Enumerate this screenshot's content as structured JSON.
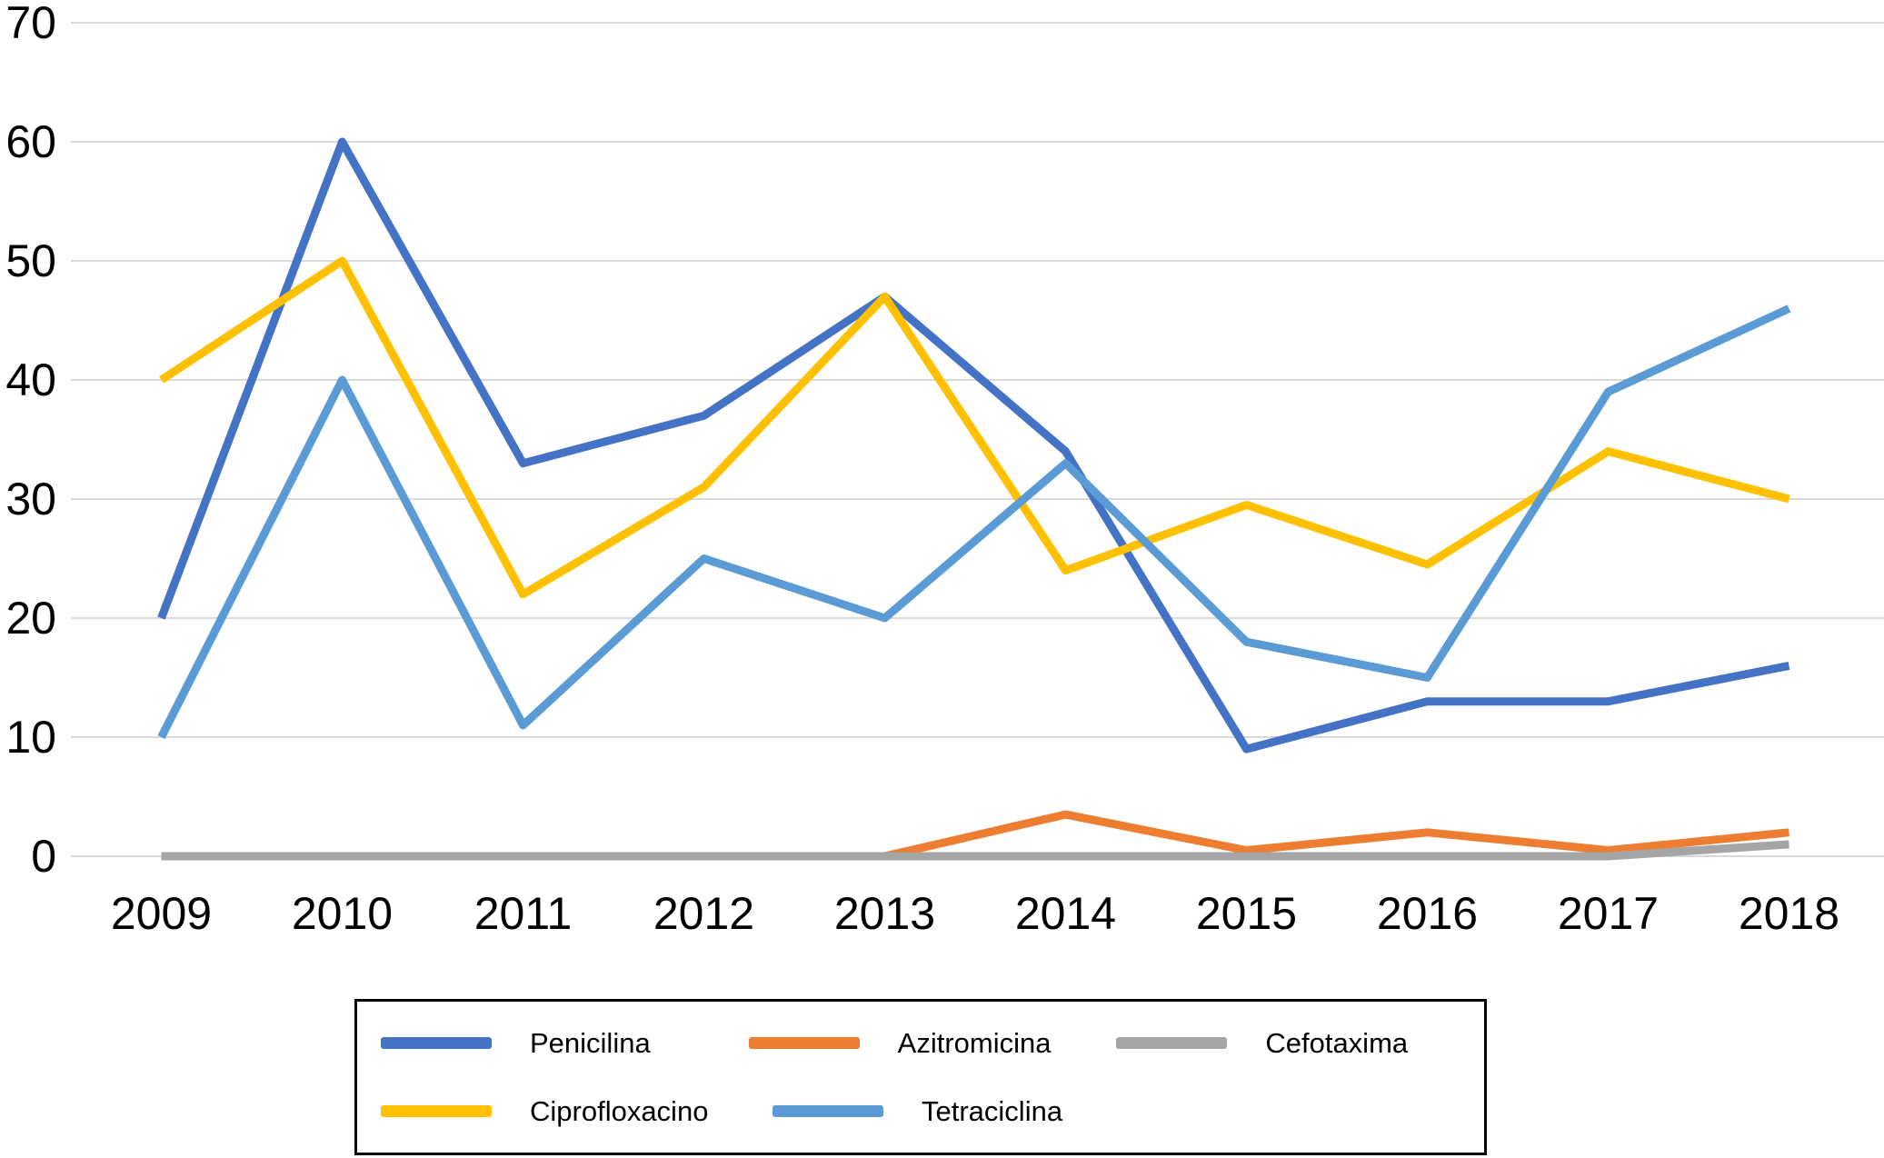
{
  "chart_data": {
    "type": "line",
    "categories": [
      "2009",
      "2010",
      "2011",
      "2012",
      "2013",
      "2014",
      "2015",
      "2016",
      "2017",
      "2018"
    ],
    "series": [
      {
        "name": "Penicilina",
        "color": "#4472C4",
        "values": [
          20,
          60,
          33,
          37,
          47,
          34,
          9,
          13,
          13,
          16
        ]
      },
      {
        "name": "Azitromicina",
        "color": "#ED7D31",
        "values": [
          0,
          0,
          0,
          0,
          0,
          3.5,
          0.5,
          2,
          0.5,
          2
        ]
      },
      {
        "name": "Cefotaxima",
        "color": "#A5A5A5",
        "values": [
          0,
          0,
          0,
          0,
          0,
          0,
          0,
          0,
          0,
          1
        ]
      },
      {
        "name": "Ciprofloxacino",
        "color": "#FFC000",
        "values": [
          40,
          50,
          22,
          31,
          47,
          24,
          29.5,
          24.5,
          34,
          30
        ]
      },
      {
        "name": "Tetraciclina",
        "color": "#5B9BD5",
        "values": [
          10,
          40,
          11,
          25,
          20,
          33,
          18,
          15,
          39,
          46
        ]
      }
    ],
    "ylim": [
      0,
      70
    ],
    "ytick_step": 10,
    "yticks": [
      0,
      10,
      20,
      30,
      40,
      50,
      60,
      70
    ],
    "grid": true,
    "legend_position": "bottom",
    "legend_rows": [
      [
        "Penicilina",
        "Azitromicina",
        "Cefotaxima"
      ],
      [
        "Ciprofloxacino",
        "Tetraciclina"
      ]
    ]
  },
  "colors": {
    "gridline": "#d9d9d9",
    "axis_text": "#000000",
    "background": "#ffffff",
    "legend_border": "#000000"
  }
}
